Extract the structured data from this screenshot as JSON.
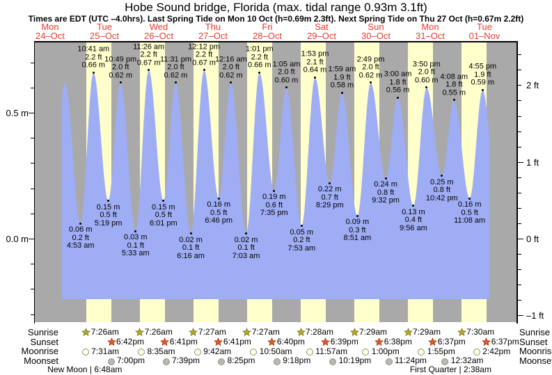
{
  "title": "Hobe Sound bridge, Florida (max. tidal range 0.93m 3.1ft)",
  "subtitle": "Times are EDT (UTC –4.0hrs). Last Spring Tide on Mon 10 Oct (h=0.69m 2.3ft). Next Spring Tide on Thu 27 Oct (h=0.67m 2.2ft)",
  "days": [
    {
      "name": "Mon",
      "date": "24–Oct"
    },
    {
      "name": "Tue",
      "date": "25–Oct"
    },
    {
      "name": "Wed",
      "date": "26–Oct"
    },
    {
      "name": "Thu",
      "date": "27–Oct"
    },
    {
      "name": "Fri",
      "date": "28–Oct"
    },
    {
      "name": "Sat",
      "date": "29–Oct"
    },
    {
      "name": "Sun",
      "date": "30–Oct"
    },
    {
      "name": "Mon",
      "date": "31–Oct"
    },
    {
      "name": "Tue",
      "date": "01–Nov"
    }
  ],
  "axes": {
    "left_labels": [
      {
        "text": "0.5 m",
        "m": 0.5
      },
      {
        "text": "0.0 m",
        "m": 0.0
      }
    ],
    "right_labels": [
      {
        "text": "2 ft",
        "ft": 2
      },
      {
        "text": "1 ft",
        "ft": 1
      },
      {
        "text": "0 ft",
        "ft": 0
      },
      {
        "text": "–1 ft",
        "ft": -1
      }
    ]
  },
  "chart_data": {
    "type": "area",
    "title": "Hobe Sound bridge, Florida (max. tidal range 0.93m 3.1ft)",
    "unit_left": "m",
    "unit_right": "ft",
    "ylim_m": [
      -0.33,
      0.78
    ],
    "legend": "blue area = predicted tide height; yellow stripes = daylight; gray = night",
    "extremes": [
      {
        "day": 1,
        "t": 4.883,
        "time": "4:53 am",
        "m": "0.06",
        "ft": "0.2",
        "type": "low"
      },
      {
        "day": 1,
        "t": 10.683,
        "time": "10:41 am",
        "m": "0.66",
        "ft": "2.2",
        "type": "high"
      },
      {
        "day": 1,
        "t": 17.317,
        "time": "5:19 pm",
        "m": "0.15",
        "ft": "0.5",
        "type": "low"
      },
      {
        "day": 1,
        "t": 22.817,
        "time": "10:49 pm",
        "m": "0.62",
        "ft": "2.0",
        "type": "high"
      },
      {
        "day": 2,
        "t": 5.55,
        "time": "5:33 am",
        "m": "0.03",
        "ft": "0.1",
        "type": "low"
      },
      {
        "day": 2,
        "t": 11.433,
        "time": "11:26 am",
        "m": "0.67",
        "ft": "2.2",
        "type": "high"
      },
      {
        "day": 2,
        "t": 18.017,
        "time": "6:01 pm",
        "m": "0.15",
        "ft": "0.5",
        "type": "low"
      },
      {
        "day": 2,
        "t": 23.517,
        "time": "11:31 pm",
        "m": "0.62",
        "ft": "2.0",
        "type": "high"
      },
      {
        "day": 3,
        "t": 6.267,
        "time": "6:16 am",
        "m": "0.02",
        "ft": "0.1",
        "type": "low"
      },
      {
        "day": 3,
        "t": 12.2,
        "time": "12:12 pm",
        "m": "0.67",
        "ft": "2.2",
        "type": "high"
      },
      {
        "day": 3,
        "t": 18.767,
        "time": "6:46 pm",
        "m": "0.16",
        "ft": "0.5",
        "type": "low"
      },
      {
        "day": 4,
        "t": 0.267,
        "time": "12:16 am",
        "m": "0.62",
        "ft": "2.0",
        "type": "high"
      },
      {
        "day": 4,
        "t": 7.05,
        "time": "7:03 am",
        "m": "0.02",
        "ft": "0.1",
        "type": "low"
      },
      {
        "day": 4,
        "t": 13.017,
        "time": "1:01 pm",
        "m": "0.66",
        "ft": "2.2",
        "type": "high"
      },
      {
        "day": 4,
        "t": 19.583,
        "time": "7:35 pm",
        "m": "0.19",
        "ft": "0.6",
        "type": "low"
      },
      {
        "day": 5,
        "t": 1.083,
        "time": "1:05 am",
        "m": "0.60",
        "ft": "2.0",
        "type": "high"
      },
      {
        "day": 5,
        "t": 7.883,
        "time": "7:53 am",
        "m": "0.05",
        "ft": "0.2",
        "type": "low"
      },
      {
        "day": 5,
        "t": 13.883,
        "time": "1:53 pm",
        "m": "0.64",
        "ft": "2.1",
        "type": "high"
      },
      {
        "day": 5,
        "t": 20.483,
        "time": "8:29 pm",
        "m": "0.22",
        "ft": "0.7",
        "type": "low"
      },
      {
        "day": 6,
        "t": 1.983,
        "time": "1:59 am",
        "m": "0.58",
        "ft": "1.9",
        "type": "high"
      },
      {
        "day": 6,
        "t": 8.85,
        "time": "8:51 am",
        "m": "0.09",
        "ft": "0.3",
        "type": "low"
      },
      {
        "day": 6,
        "t": 14.817,
        "time": "2:49 pm",
        "m": "0.62",
        "ft": "2.0",
        "type": "high"
      },
      {
        "day": 6,
        "t": 21.533,
        "time": "9:32 pm",
        "m": "0.24",
        "ft": "0.8",
        "type": "low"
      },
      {
        "day": 7,
        "t": 3.0,
        "time": "3:00 am",
        "m": "0.56",
        "ft": "1.8",
        "type": "high"
      },
      {
        "day": 7,
        "t": 9.933,
        "time": "9:56 am",
        "m": "0.13",
        "ft": "0.4",
        "type": "low"
      },
      {
        "day": 7,
        "t": 15.833,
        "time": "3:50 pm",
        "m": "0.60",
        "ft": "2.0",
        "type": "high"
      },
      {
        "day": 7,
        "t": 22.7,
        "time": "10:42 pm",
        "m": "0.25",
        "ft": "0.8",
        "type": "low"
      },
      {
        "day": 8,
        "t": 4.133,
        "time": "4:08 am",
        "m": "0.55",
        "ft": "1.8",
        "type": "high"
      },
      {
        "day": 8,
        "t": 11.133,
        "time": "11:08 am",
        "m": "0.16",
        "ft": "0.5",
        "type": "low"
      },
      {
        "day": 8,
        "t": 16.917,
        "time": "4:55 pm",
        "m": "0.59",
        "ft": "1.9",
        "type": "high"
      }
    ],
    "unlabeled_curve_points": [
      {
        "day": 0,
        "t": 16.2,
        "m": "0.15"
      },
      {
        "day": 0,
        "t": 21.95,
        "m": "0.62"
      },
      {
        "day": 8,
        "t": 23.5,
        "m": "0.17"
      }
    ]
  },
  "sun": {
    "sunrise": [
      {
        "day": 1,
        "t": 7.433,
        "time": "7:26am"
      },
      {
        "day": 2,
        "t": 7.433,
        "time": "7:26am"
      },
      {
        "day": 3,
        "t": 7.45,
        "time": "7:27am"
      },
      {
        "day": 4,
        "t": 7.45,
        "time": "7:27am"
      },
      {
        "day": 5,
        "t": 7.467,
        "time": "7:28am"
      },
      {
        "day": 6,
        "t": 7.483,
        "time": "7:29am"
      },
      {
        "day": 7,
        "t": 7.483,
        "time": "7:29am"
      },
      {
        "day": 8,
        "t": 7.5,
        "time": "7:30am"
      }
    ],
    "sunset": [
      {
        "day": 1,
        "t": 18.7,
        "time": "6:42pm"
      },
      {
        "day": 2,
        "t": 18.683,
        "time": "6:41pm"
      },
      {
        "day": 3,
        "t": 18.683,
        "time": "6:41pm"
      },
      {
        "day": 4,
        "t": 18.667,
        "time": "6:40pm"
      },
      {
        "day": 5,
        "t": 18.65,
        "time": "6:39pm"
      },
      {
        "day": 6,
        "t": 18.633,
        "time": "6:38pm"
      },
      {
        "day": 7,
        "t": 18.617,
        "time": "6:37pm"
      },
      {
        "day": 8,
        "t": 18.617,
        "time": "6:37pm"
      }
    ]
  },
  "moon": {
    "moonrise": [
      {
        "day": 1,
        "t": 7.517,
        "time": "7:31am"
      },
      {
        "day": 2,
        "t": 8.583,
        "time": "8:35am"
      },
      {
        "day": 3,
        "t": 9.7,
        "time": "9:42am"
      },
      {
        "day": 4,
        "t": 10.833,
        "time": "10:50am"
      },
      {
        "day": 5,
        "t": 11.95,
        "time": "11:57am"
      },
      {
        "day": 6,
        "t": 13.0,
        "time": "1:00pm"
      },
      {
        "day": 7,
        "t": 13.917,
        "time": "1:55pm"
      },
      {
        "day": 8,
        "t": 14.7,
        "time": "2:42pm"
      }
    ],
    "moonset": [
      {
        "day": 1,
        "t": 19.0,
        "time": "7:00pm"
      },
      {
        "day": 2,
        "t": 19.65,
        "time": "7:39pm"
      },
      {
        "day": 3,
        "t": 20.417,
        "time": "8:25pm"
      },
      {
        "day": 4,
        "t": 21.3,
        "time": "9:18pm"
      },
      {
        "day": 5,
        "t": 22.317,
        "time": "10:19pm"
      },
      {
        "day": 6,
        "t": 23.4,
        "time": "11:24pm"
      },
      {
        "day": 8,
        "t": 0.533,
        "time": "12:32am"
      }
    ],
    "phases": [
      {
        "day": 1,
        "t": 6.8,
        "label": "New Moon | 6:48am"
      },
      {
        "day": 8,
        "t": 2.633,
        "label": "First Quarter | 2:38am"
      }
    ]
  },
  "row_labels": {
    "sunrise": "Sunrise",
    "sunset": "Sunset",
    "moonrise": "Moonrise",
    "moonset": "Moonset"
  },
  "colors": {
    "night_gray": "#a9a9a9",
    "day_yellow": "#ffffcc",
    "tide_blue": "#9fadf5",
    "day_label_red": "#e8392c",
    "sunrise_star": "#b3a82d",
    "sunrise_star_edge": "#7e7613",
    "sunset_star": "#e05a28",
    "sunset_star_edge": "#b03010",
    "moonrise_fill": "#ffffdd",
    "moonset_fill": "#b9b9b0",
    "moon_edge": "#8f8f8f"
  }
}
